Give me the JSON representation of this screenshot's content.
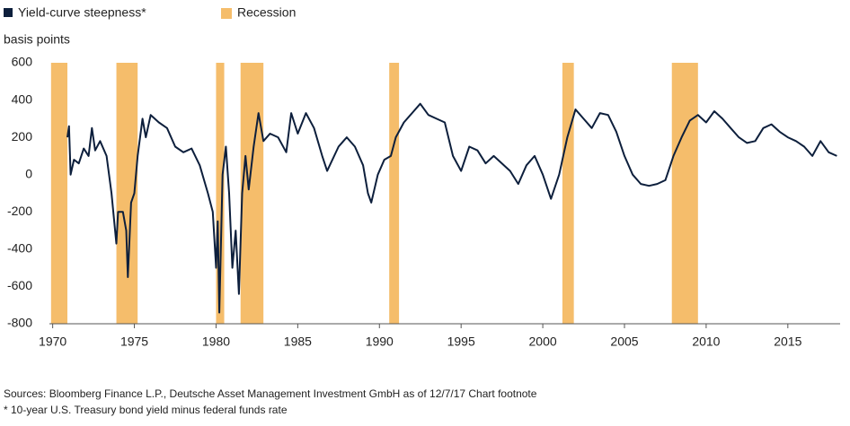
{
  "chart_data": {
    "type": "line",
    "y_label": "basis points",
    "x": [
      1970.9,
      1971.0,
      1971.1,
      1971.3,
      1971.6,
      1971.9,
      1972.2,
      1972.4,
      1972.6,
      1972.9,
      1973.3,
      1973.6,
      1973.9,
      1974.0,
      1974.3,
      1974.5,
      1974.6,
      1974.8,
      1975.0,
      1975.2,
      1975.5,
      1975.7,
      1976.0,
      1976.5,
      1977.0,
      1977.5,
      1978.0,
      1978.5,
      1979.0,
      1979.5,
      1979.8,
      1980.0,
      1980.1,
      1980.2,
      1980.4,
      1980.6,
      1980.8,
      1981.0,
      1981.2,
      1981.4,
      1981.6,
      1981.8,
      1982.0,
      1982.3,
      1982.6,
      1982.9,
      1983.3,
      1983.8,
      1984.3,
      1984.6,
      1985.0,
      1985.5,
      1986.0,
      1986.5,
      1986.8,
      1987.5,
      1988.0,
      1988.5,
      1989.0,
      1989.3,
      1989.5,
      1989.9,
      1990.3,
      1990.7,
      1991.0,
      1991.5,
      1992.0,
      1992.5,
      1993.0,
      1993.5,
      1994.0,
      1994.5,
      1995.0,
      1995.5,
      1996.0,
      1996.5,
      1997.0,
      1997.5,
      1998.0,
      1998.5,
      1999.0,
      1999.5,
      2000.0,
      2000.5,
      2001.0,
      2001.5,
      2002.0,
      2002.5,
      2003.0,
      2003.5,
      2004.0,
      2004.5,
      2005.0,
      2005.5,
      2006.0,
      2006.5,
      2007.0,
      2007.5,
      2008.0,
      2008.5,
      2009.0,
      2009.5,
      2010.0,
      2010.5,
      2011.0,
      2011.5,
      2012.0,
      2012.5,
      2013.0,
      2013.5,
      2014.0,
      2014.5,
      2015.0,
      2015.5,
      2016.0,
      2016.5,
      2017.0,
      2017.5,
      2018.0
    ],
    "series": [
      {
        "name": "Yield-curve steepness*",
        "color": "#0d1f3c",
        "values": [
          200,
          260,
          0,
          80,
          60,
          140,
          100,
          250,
          130,
          180,
          100,
          -100,
          -370,
          -200,
          -200,
          -300,
          -550,
          -150,
          -100,
          100,
          300,
          200,
          320,
          280,
          250,
          150,
          120,
          140,
          50,
          -100,
          -200,
          -500,
          -250,
          -740,
          0,
          150,
          -100,
          -500,
          -300,
          -640,
          -100,
          100,
          -80,
          150,
          330,
          180,
          220,
          200,
          120,
          330,
          220,
          330,
          250,
          100,
          20,
          150,
          200,
          150,
          50,
          -100,
          -150,
          0,
          80,
          100,
          200,
          280,
          330,
          380,
          320,
          300,
          280,
          100,
          20,
          150,
          130,
          60,
          100,
          60,
          20,
          -50,
          50,
          100,
          0,
          -130,
          0,
          200,
          350,
          300,
          250,
          330,
          320,
          230,
          100,
          0,
          -50,
          -60,
          -50,
          -30,
          100,
          200,
          290,
          320,
          280,
          340,
          300,
          250,
          200,
          170,
          180,
          250,
          270,
          230,
          200,
          180,
          150,
          100,
          180,
          120,
          100
        ]
      }
    ],
    "bands": {
      "name": "Recession",
      "color": "#f5bd6b",
      "ranges": [
        [
          1969.9,
          1970.9
        ],
        [
          1973.9,
          1975.2
        ],
        [
          1980.0,
          1980.5
        ],
        [
          1981.5,
          1982.9
        ],
        [
          1990.6,
          1991.2
        ],
        [
          2001.2,
          2001.9
        ],
        [
          2007.9,
          2009.5
        ]
      ]
    },
    "xlim": [
      1969.8,
      2018.2
    ],
    "xticks": [
      1970,
      1975,
      1980,
      1985,
      1990,
      1995,
      2000,
      2005,
      2010,
      2015
    ],
    "ylim": [
      -800,
      600
    ],
    "yticks": [
      -800,
      -600,
      -400,
      -200,
      0,
      200,
      400,
      600
    ],
    "source": "Sources: Bloomberg Finance L.P., Deutsche Asset Management Investment GmbH as of 12/7/17 Chart footnote",
    "footnote": "* 10-year U.S. Treasury bond yield minus federal funds rate"
  }
}
